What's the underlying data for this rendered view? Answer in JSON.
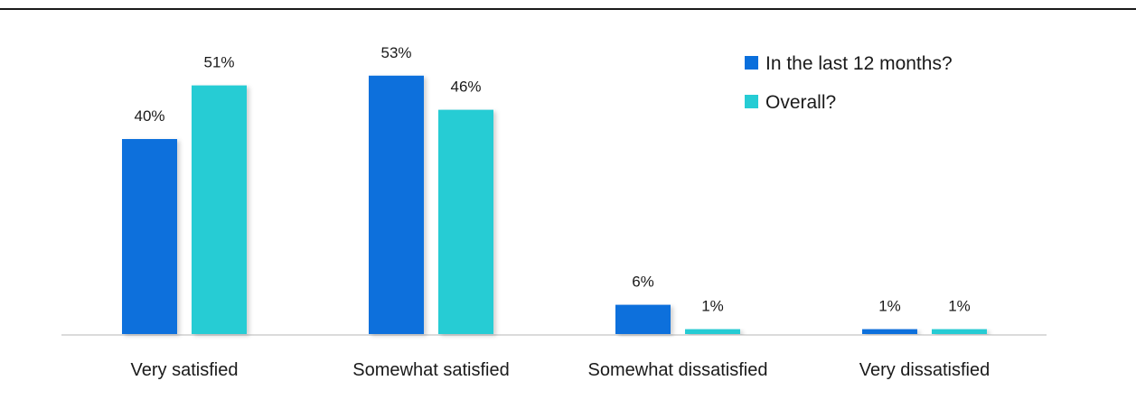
{
  "chart_data": {
    "type": "bar",
    "title": "",
    "xlabel": "",
    "ylabel": "",
    "ylim": [
      0,
      60
    ],
    "grid": false,
    "legend_position": "top-right",
    "categories": [
      "Very satisfied",
      "Somewhat satisfied",
      "Somewhat dissatisfied",
      "Very dissatisfied"
    ],
    "series": [
      {
        "name": "In the last 12 months?",
        "color": "#0a6fdc",
        "values": [
          40,
          53,
          6,
          1
        ],
        "labels": [
          "40%",
          "53%",
          "6%",
          "1%"
        ]
      },
      {
        "name": "Overall?",
        "color": "#26ccd4",
        "values": [
          51,
          46,
          1,
          1
        ],
        "labels": [
          "51%",
          "46%",
          "1%",
          "1%"
        ]
      }
    ]
  }
}
